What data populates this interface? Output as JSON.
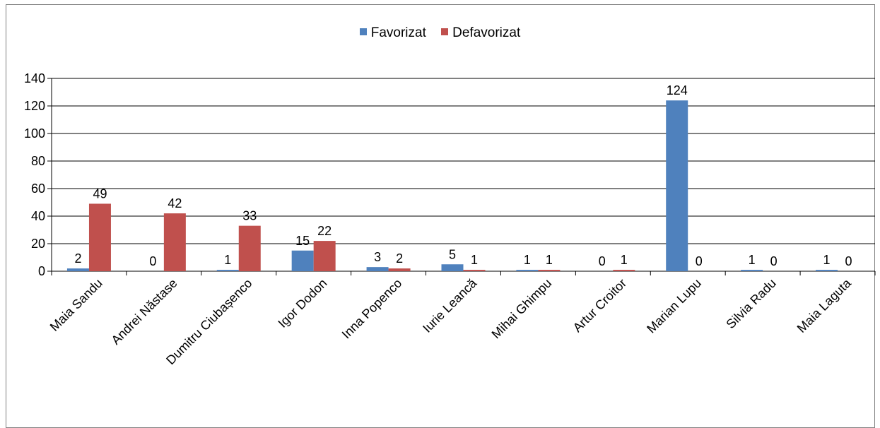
{
  "chart_data": {
    "type": "bar",
    "categories": [
      "Maia Sandu",
      "Andrei Năstase",
      "Dumitru Ciubașenco",
      "Igor Dodon",
      "Inna Popenco",
      "Iurie Leancă",
      "Mihai Ghimpu",
      "Artur Croitor",
      "Marian Lupu",
      "Silvia Radu",
      "Maia Laguta"
    ],
    "series": [
      {
        "name": "Favorizat",
        "values": [
          2,
          0,
          1,
          15,
          3,
          5,
          1,
          0,
          124,
          1,
          1
        ],
        "color": "#4F81BD"
      },
      {
        "name": "Defavorizat",
        "values": [
          49,
          42,
          33,
          22,
          2,
          1,
          1,
          1,
          0,
          0,
          0
        ],
        "color": "#C0504D"
      }
    ],
    "title": "",
    "xlabel": "",
    "ylabel": "",
    "ylim": [
      0,
      140
    ],
    "yticks": [
      0,
      20,
      40,
      60,
      80,
      100,
      120,
      140
    ],
    "grid": "horizontal",
    "legend_position": "top-center",
    "data_labels": true
  }
}
